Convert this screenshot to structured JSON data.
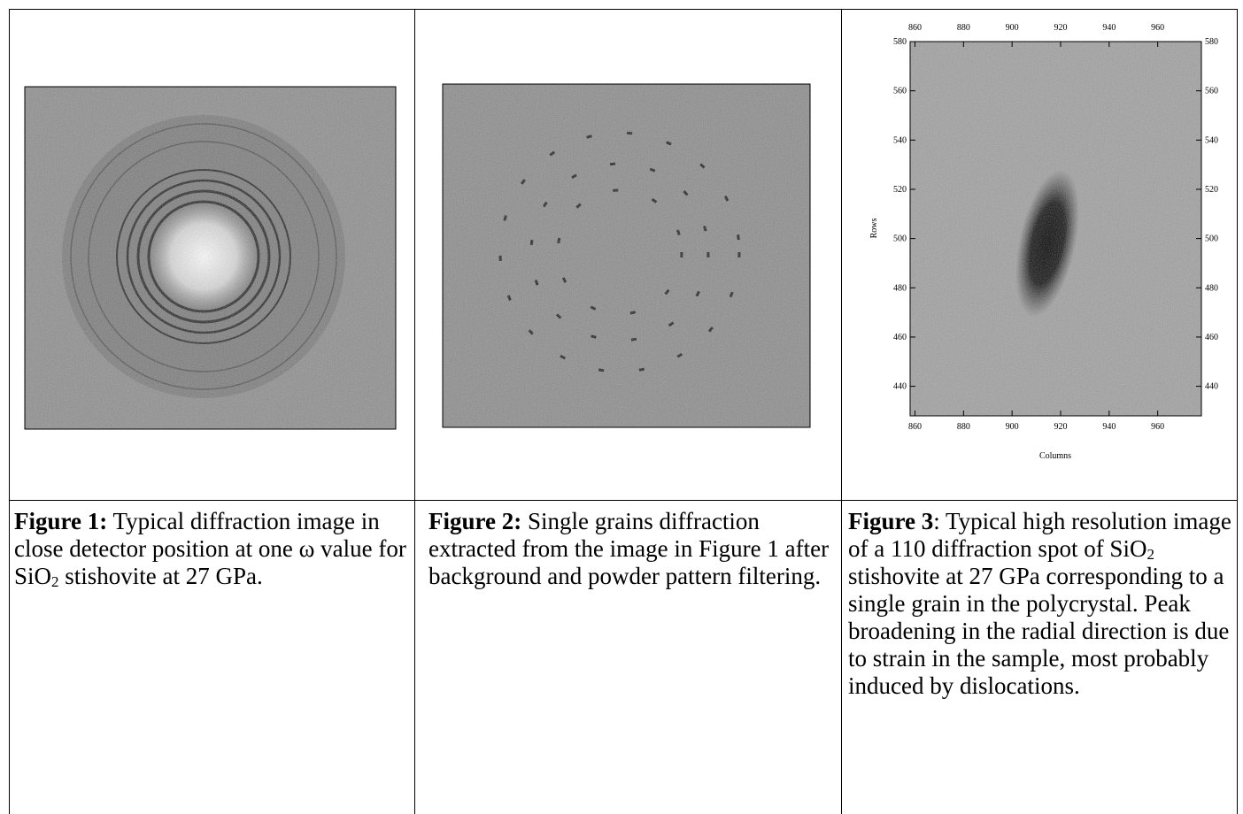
{
  "figures": [
    {
      "label": "Figure 1:",
      "caption_parts": [
        " Typical diffraction image in close detector position at one ω value for SiO",
        "2",
        " stishovite at 27 GPa."
      ]
    },
    {
      "label": "Figure 2:",
      "caption_parts": [
        " Single grains diffraction extracted from the image in Figure 1 after background and powder pattern filtering."
      ]
    },
    {
      "label": "Figure 3",
      "caption_parts": [
        ": Typical high resolution image of a 110 diffraction spot of SiO",
        "2",
        " stishovite at 27 GPa corresponding to a single grain in the polycrystal. Peak broadening in the radial direction is due to strain in the sample, most probably induced by dislocations."
      ],
      "plot": {
        "xlabel": "Columns",
        "ylabel": "Rows",
        "xlim": [
          858,
          978
        ],
        "ylim": [
          428,
          580
        ],
        "xticks": [
          860,
          880,
          900,
          920,
          940,
          960
        ],
        "yticks": [
          440,
          460,
          480,
          500,
          520,
          540,
          560,
          580
        ]
      }
    }
  ]
}
